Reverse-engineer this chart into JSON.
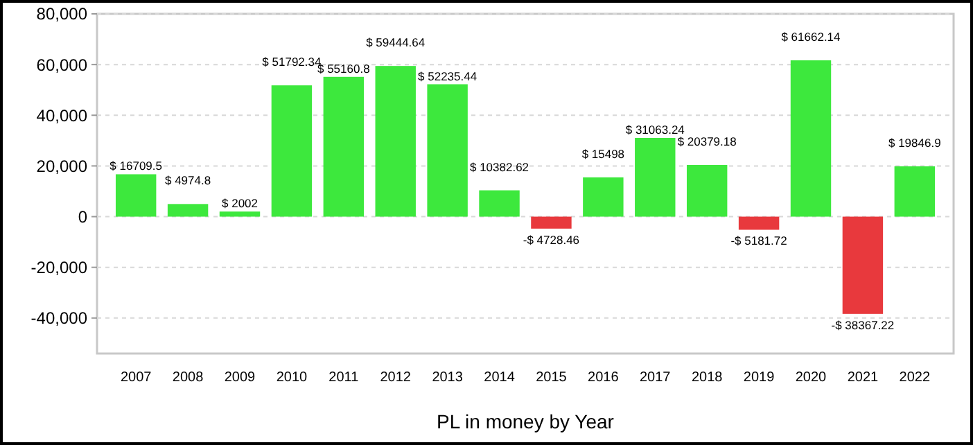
{
  "chart_data": {
    "type": "bar",
    "xlabel": "PL in money by Year",
    "categories": [
      "2007",
      "2008",
      "2009",
      "2010",
      "2011",
      "2012",
      "2013",
      "2014",
      "2015",
      "2016",
      "2017",
      "2018",
      "2019",
      "2020",
      "2021",
      "2022"
    ],
    "values": [
      16709.5,
      4974.8,
      2002,
      51792.34,
      55160.8,
      59444.64,
      52235.44,
      10382.62,
      -4728.46,
      15498,
      31063.24,
      20379.18,
      -5181.72,
      61662.14,
      -38367.22,
      19846.9
    ],
    "value_labels": [
      "$ 16709.5",
      "$ 4974.8",
      "$ 2002",
      "$ 51792.34",
      "$ 55160.8",
      "$ 59444.64",
      "$ 52235.44",
      "$ 10382.62",
      "-$ 4728.46",
      "$ 15498",
      "$ 31063.24",
      "$ 20379.18",
      "-$ 5181.72",
      "$ 61662.14",
      "-$ 38367.22",
      "$ 19846.9"
    ],
    "colors": [
      "#3de83d",
      "#3de83d",
      "#3de83d",
      "#3de83d",
      "#3de83d",
      "#3de83d",
      "#3de83d",
      "#3de83d",
      "#e8393d",
      "#3de83d",
      "#3de83d",
      "#3de83d",
      "#e8393d",
      "#3de83d",
      "#e8393d",
      "#3de83d"
    ],
    "ylim": [
      -54000,
      80000
    ],
    "yticks": [
      {
        "value": -40000,
        "label": "-40,000"
      },
      {
        "value": -20000,
        "label": "-20,000"
      },
      {
        "value": 0,
        "label": "0"
      },
      {
        "value": 20000,
        "label": "20,000"
      },
      {
        "value": 40000,
        "label": "40,000"
      },
      {
        "value": 60000,
        "label": "60,000"
      },
      {
        "value": 80000,
        "label": "80,000"
      }
    ],
    "grid": "y"
  }
}
